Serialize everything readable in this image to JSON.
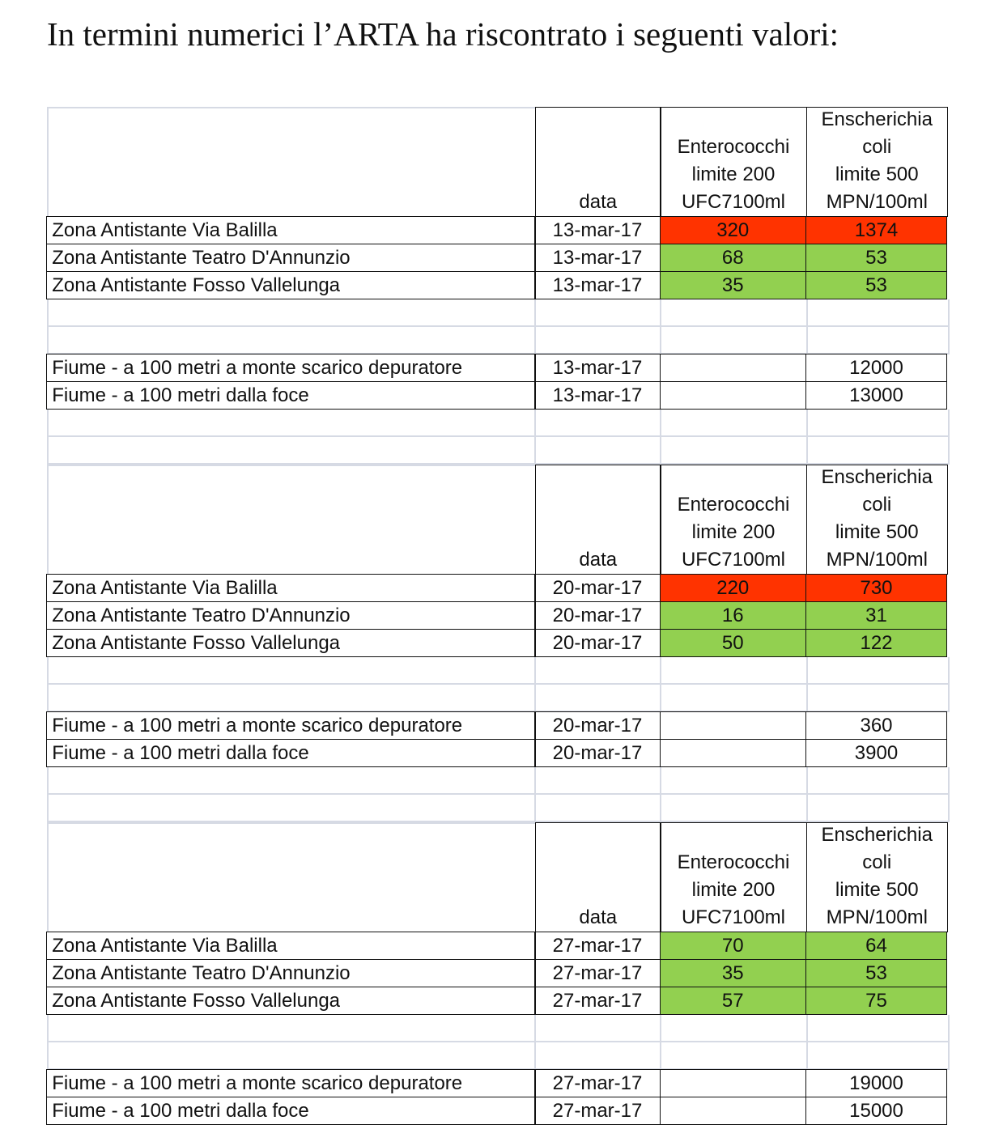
{
  "title": "In termini numerici l’ARTA ha riscontrato i seguenti valori:",
  "colors": {
    "exceed": "#ff3300",
    "ok": "#92d050"
  },
  "header": {
    "date": "data",
    "enterococchi": "Enterococchi\nlimite 200\nUFC7100ml",
    "ecoli": "Enscherichia\ncoli\nlimite 500\nMPN/100ml"
  },
  "blocks": [
    {
      "zones": [
        {
          "name": "Zona Antistante Via Balilla",
          "date": "13-mar-17",
          "entero": "320",
          "ecoli": "1374",
          "entero_status": "exceed",
          "ecoli_status": "exceed"
        },
        {
          "name": "Zona Antistante Teatro D'Annunzio",
          "date": "13-mar-17",
          "entero": "68",
          "ecoli": "53",
          "entero_status": "ok",
          "ecoli_status": "ok"
        },
        {
          "name": "Zona Antistante Fosso Vallelunga",
          "date": "13-mar-17",
          "entero": "35",
          "ecoli": "53",
          "entero_status": "ok",
          "ecoli_status": "ok"
        }
      ],
      "river": [
        {
          "name": "Fiume - a 100 metri a monte scarico depuratore",
          "date": "13-mar-17",
          "entero": "",
          "ecoli": "12000"
        },
        {
          "name": "Fiume - a 100 metri dalla foce",
          "date": "13-mar-17",
          "entero": "",
          "ecoli": "13000"
        }
      ]
    },
    {
      "zones": [
        {
          "name": "Zona Antistante Via Balilla",
          "date": "20-mar-17",
          "entero": "220",
          "ecoli": "730",
          "entero_status": "exceed",
          "ecoli_status": "exceed"
        },
        {
          "name": "Zona Antistante Teatro D'Annunzio",
          "date": "20-mar-17",
          "entero": "16",
          "ecoli": "31",
          "entero_status": "ok",
          "ecoli_status": "ok"
        },
        {
          "name": "Zona Antistante Fosso Vallelunga",
          "date": "20-mar-17",
          "entero": "50",
          "ecoli": "122",
          "entero_status": "ok",
          "ecoli_status": "ok"
        }
      ],
      "river": [
        {
          "name": "Fiume - a 100 metri a monte scarico depuratore",
          "date": "20-mar-17",
          "entero": "",
          "ecoli": "360"
        },
        {
          "name": "Fiume - a 100 metri dalla foce",
          "date": "20-mar-17",
          "entero": "",
          "ecoli": "3900"
        }
      ]
    },
    {
      "zones": [
        {
          "name": "Zona Antistante Via Balilla",
          "date": "27-mar-17",
          "entero": "70",
          "ecoli": "64",
          "entero_status": "ok",
          "ecoli_status": "ok"
        },
        {
          "name": "Zona Antistante Teatro D'Annunzio",
          "date": "27-mar-17",
          "entero": "35",
          "ecoli": "53",
          "entero_status": "ok",
          "ecoli_status": "ok"
        },
        {
          "name": "Zona Antistante Fosso Vallelunga",
          "date": "27-mar-17",
          "entero": "57",
          "ecoli": "75",
          "entero_status": "ok",
          "ecoli_status": "ok"
        }
      ],
      "river": [
        {
          "name": "Fiume - a 100 metri a monte scarico depuratore",
          "date": "27-mar-17",
          "entero": "",
          "ecoli": "19000"
        },
        {
          "name": "Fiume - a 100 metri dalla foce",
          "date": "27-mar-17",
          "entero": "",
          "ecoli": "15000"
        }
      ]
    }
  ]
}
